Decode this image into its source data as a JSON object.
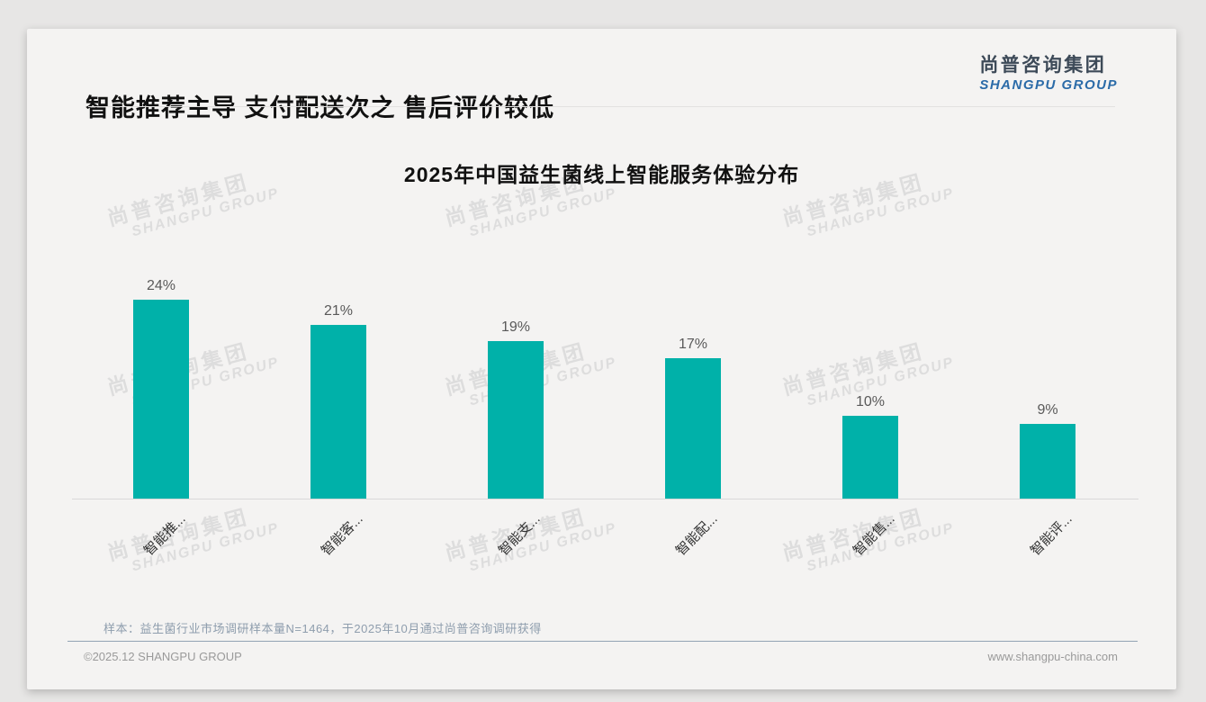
{
  "header": {
    "title": "智能推荐主导 支付配送次之 售后评价较低"
  },
  "logo": {
    "cn": "尚普咨询集团",
    "en": "SHANGPU GROUP"
  },
  "watermark": {
    "cn": "尚普咨询集团",
    "en": "SHANGPU GROUP"
  },
  "chart_data": {
    "type": "bar",
    "title": "2025年中国益生菌线上智能服务体验分布",
    "categories": [
      "智能推...",
      "智能客...",
      "智能支...",
      "智能配...",
      "智能售...",
      "智能评..."
    ],
    "values": [
      24,
      21,
      19,
      17,
      10,
      9
    ],
    "value_labels": [
      "24%",
      "21%",
      "19%",
      "17%",
      "10%",
      "9%"
    ],
    "unit": "%",
    "bar_color": "#00b1a9",
    "grid": false,
    "legend_position": "none",
    "y_axis_visible": false,
    "x_label_rotation": -45
  },
  "note": "样本：益生菌行业市场调研样本量N=1464，于2025年10月通过尚普咨询调研获得",
  "footer": {
    "copyright": "©2025.12 SHANGPU GROUP",
    "website": "www.shangpu-china.com"
  }
}
